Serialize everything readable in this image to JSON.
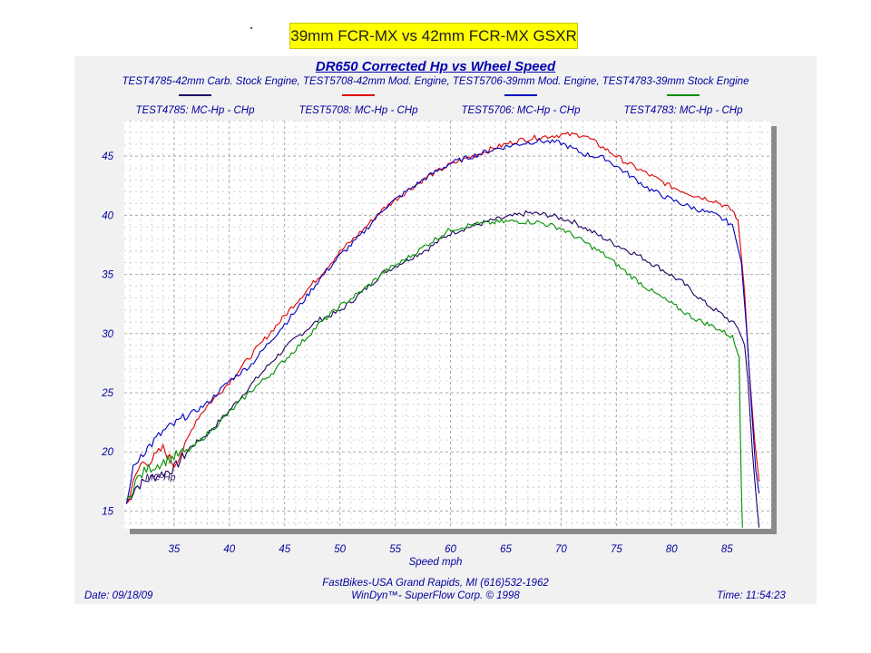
{
  "banner": {
    "text": "39mm FCR-MX vs 42mm FCR-MX GSXR"
  },
  "chart_data": {
    "type": "line",
    "title": "DR650 Corrected Hp vs Wheel Speed",
    "subtitle": "TEST4785-42mm Carb. Stock Engine, TEST5708-42mm Mod. Engine, TEST5706-39mm Mod. Engine, TEST4783-39mm Stock Engine",
    "xlabel": "Speed   mph",
    "ylabel": "",
    "xlim": [
      30.5,
      89
    ],
    "ylim": [
      13.5,
      48
    ],
    "xticks": [
      35,
      40,
      45,
      50,
      55,
      60,
      65,
      70,
      75,
      80,
      85
    ],
    "yticks": [
      15,
      20,
      25,
      30,
      35,
      40,
      45
    ],
    "grid": true,
    "legend_position": "top",
    "inline_label": "MC-Hp",
    "series": [
      {
        "name": "TEST4785: MC-Hp - CHp",
        "color": "#200060",
        "x": [
          30.7,
          31.5,
          32.5,
          33.5,
          35,
          36.5,
          38,
          40,
          42,
          44,
          46,
          48,
          50,
          52,
          54,
          56,
          58,
          60,
          62,
          64,
          66,
          67,
          69,
          71,
          73,
          75,
          77,
          79,
          81,
          83,
          85,
          86,
          86.6,
          86.9,
          87.3,
          87.7,
          87.9
        ],
        "values": [
          15.6,
          17,
          17.6,
          18,
          18.6,
          20.4,
          21.5,
          23.5,
          25.7,
          27.8,
          29.6,
          31.1,
          31.9,
          33.5,
          35.2,
          36.2,
          37.2,
          38.5,
          39.1,
          39.6,
          40,
          40.2,
          40,
          39.5,
          38.5,
          37.5,
          36.6,
          35.5,
          34.3,
          32.6,
          31.3,
          30.5,
          29,
          26,
          20,
          15.5,
          13.6
        ]
      },
      {
        "name": "TEST5708: MC-Hp - CHp",
        "color": "#e00000",
        "x": [
          30.7,
          31.3,
          32,
          33,
          34,
          35,
          36,
          37,
          38,
          40,
          42,
          44,
          46,
          48,
          50,
          52,
          54,
          56,
          58,
          60,
          62,
          64,
          66,
          68,
          70,
          72,
          74,
          76,
          78,
          80,
          82,
          84,
          85.5,
          86,
          86.6,
          87,
          87.5,
          87.9
        ],
        "values": [
          15.6,
          17.3,
          19,
          19.3,
          20.3,
          18.9,
          20.6,
          22.7,
          23.9,
          25.9,
          28.2,
          30.4,
          32.6,
          34.7,
          36.9,
          38.7,
          40.6,
          42,
          43.3,
          44.3,
          45,
          45.7,
          46.3,
          46.6,
          46.8,
          46.8,
          45.6,
          44.4,
          43.4,
          42.4,
          41.7,
          41.2,
          40.4,
          39.6,
          33.5,
          27,
          21,
          17.5
        ]
      },
      {
        "name": "TEST5706: MC-Hp - CHp",
        "color": "#0000c0",
        "x": [
          30.7,
          31.3,
          32,
          33,
          34,
          35,
          36,
          38,
          40,
          42,
          44,
          46,
          48,
          50,
          52,
          54,
          56,
          58,
          60,
          62,
          64,
          66,
          68,
          70,
          72,
          74,
          76,
          78,
          80,
          82,
          84,
          85.5,
          86.3,
          86.8,
          87.2,
          87.6,
          87.9
        ],
        "values": [
          15.6,
          18.5,
          19.8,
          20.7,
          21.7,
          22.3,
          22.9,
          24.1,
          26,
          27.4,
          29.7,
          31.9,
          34.4,
          36.6,
          38.4,
          40.6,
          42,
          43.3,
          44.4,
          45,
          45.6,
          46,
          46.3,
          46.1,
          45.2,
          44.8,
          43.5,
          42.2,
          41.3,
          40.6,
          40,
          39.2,
          36,
          30,
          24,
          18.5,
          16.5
        ]
      },
      {
        "name": "TEST4783: MC-Hp - CHp",
        "color": "#009000",
        "x": [
          30.7,
          31.5,
          32.5,
          33.5,
          35,
          36.5,
          38,
          40,
          42,
          44,
          46,
          48,
          50,
          52,
          54,
          56,
          58,
          60,
          62,
          64,
          66,
          68,
          70,
          72,
          74,
          76,
          78,
          80,
          82,
          84,
          85.5,
          86.1,
          86.2,
          86.3,
          86.4
        ],
        "values": [
          15.6,
          17.5,
          18.5,
          18.9,
          19.6,
          20.2,
          21.5,
          23.3,
          25.2,
          26.8,
          28.7,
          30.7,
          32.3,
          33.6,
          35.2,
          36.3,
          37.6,
          38.8,
          39.2,
          39.4,
          39.5,
          39.4,
          38.9,
          37.8,
          36.6,
          35.1,
          33.7,
          32.5,
          31.3,
          30.5,
          29.7,
          28,
          22,
          17,
          13.6
        ]
      }
    ]
  },
  "footer": {
    "center_line_1": "FastBikes-USA Grand Rapids, MI (616)532-1962",
    "center_line_2": "WinDyn™- SuperFlow Corp. © 1998",
    "date": "Date: 09/18/09",
    "time": "Time: 11:54:23"
  }
}
